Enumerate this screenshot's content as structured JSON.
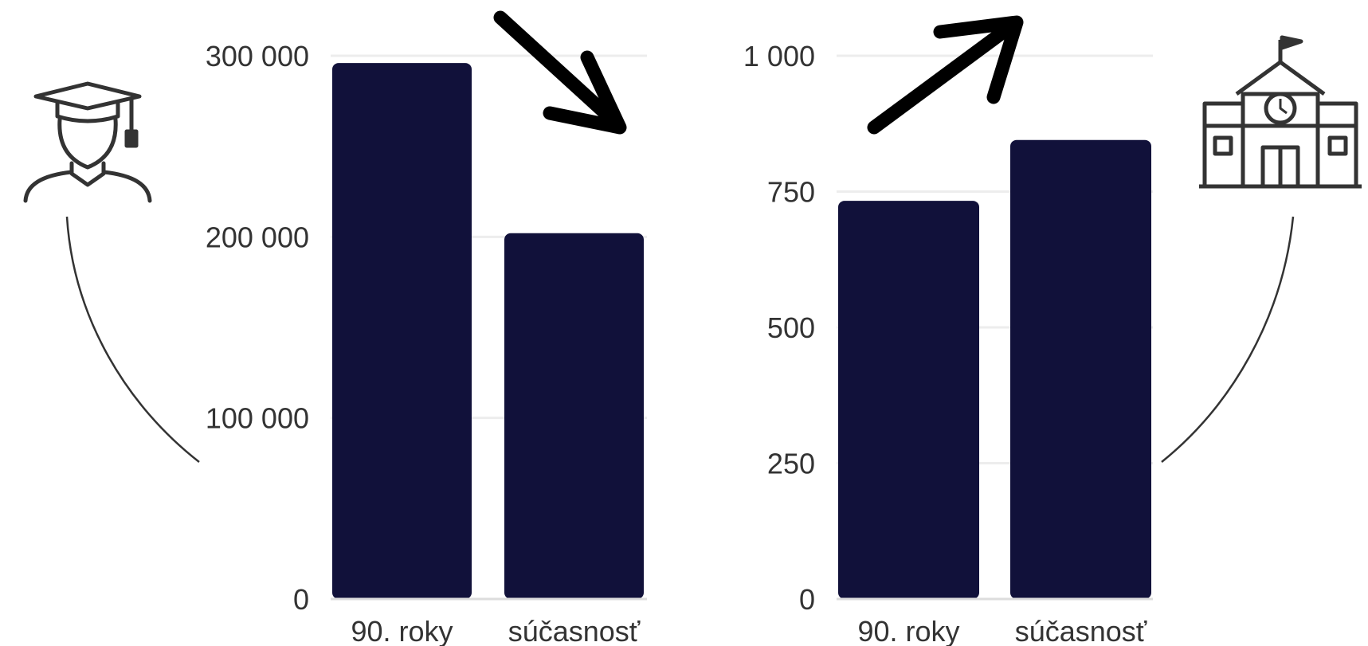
{
  "colors": {
    "bar": "#11113a",
    "grid": "#ededed",
    "axis": "#dddddd",
    "text": "#333333",
    "arrow": "#000000",
    "icon": "#333333"
  },
  "icons": {
    "left": "graduate-icon",
    "right": "school-building-icon",
    "left_arrow": "arrow-down-right-icon",
    "right_arrow": "arrow-up-right-icon"
  },
  "chart_data": [
    {
      "type": "bar",
      "title": "",
      "xlabel": "",
      "ylabel": "",
      "categories": [
        "90. roky",
        "súčasnosť"
      ],
      "values": [
        296000,
        202000
      ],
      "ylim": [
        0,
        300000
      ],
      "yticks": [
        0,
        100000,
        200000,
        300000
      ],
      "ytick_labels": [
        "0",
        "100 000",
        "200 000",
        "300 000"
      ],
      "grid": true,
      "legend": "none",
      "trend": "down"
    },
    {
      "type": "bar",
      "title": "",
      "xlabel": "",
      "ylabel": "",
      "categories": [
        "90. roky",
        "súčasnosť"
      ],
      "values": [
        733,
        845
      ],
      "ylim": [
        0,
        1000
      ],
      "yticks": [
        0,
        250,
        500,
        750,
        1000
      ],
      "ytick_labels": [
        "0",
        "250",
        "500",
        "750",
        "1 000"
      ],
      "grid": true,
      "legend": "none",
      "trend": "up"
    }
  ]
}
